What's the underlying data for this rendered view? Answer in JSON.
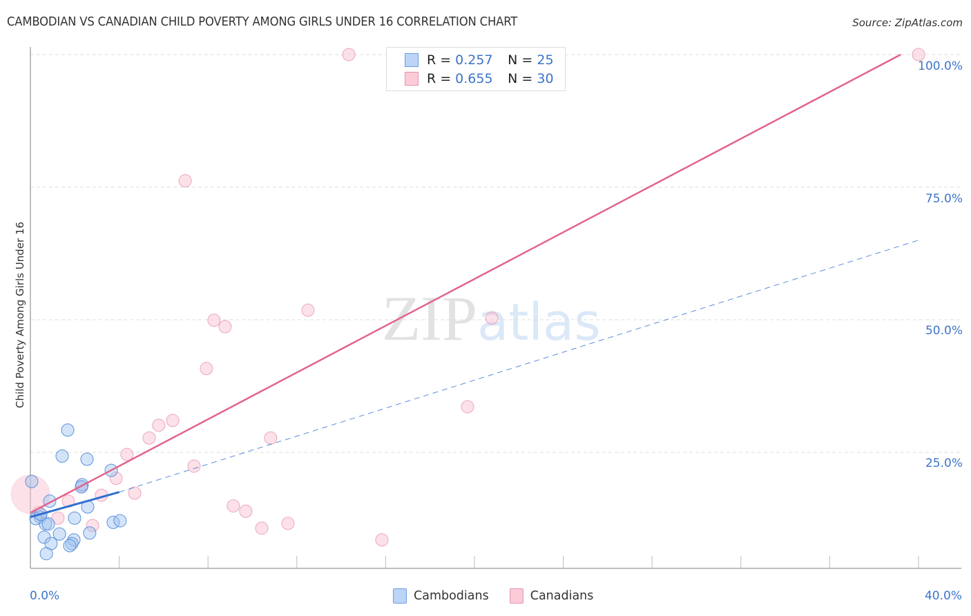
{
  "header": {
    "title": "CAMBODIAN VS CANADIAN CHILD POVERTY AMONG GIRLS UNDER 16 CORRELATION CHART",
    "source": "Source: ZipAtlas.com"
  },
  "watermark": {
    "zip": "ZIP",
    "atlas": "atlas"
  },
  "axes": {
    "ylabel": "Child Poverty Among Girls Under 16",
    "y_ticks": [
      "100.0%",
      "75.0%",
      "50.0%",
      "25.0%"
    ],
    "x_ticks": [
      "0.0%",
      "40.0%"
    ]
  },
  "legend": {
    "rows": [
      {
        "r_label": "R =",
        "r_value": "0.257",
        "n_label": "N =",
        "n_value": "25",
        "color": "#a9c8f0"
      },
      {
        "r_label": "R =",
        "r_value": "0.655",
        "n_label": "N =",
        "n_value": "30",
        "color": "#f7b8cb"
      }
    ],
    "series": [
      {
        "name": "Cambodians",
        "fill": "#bcd4f5",
        "stroke": "#6c9de0"
      },
      {
        "name": "Canadians",
        "fill": "#fbcbd8",
        "stroke": "#e593ae"
      }
    ]
  },
  "colors": {
    "blue_point_fill": "rgba(160,196,240,0.45)",
    "blue_point_stroke": "#5b91db",
    "pink_point_fill": "rgba(248,188,206,0.45)",
    "pink_point_stroke": "#e693ae",
    "blue_line": "#2f6fd0",
    "pink_line": "#e2628b",
    "grid": "#dddddd",
    "tick_label": "#3b74c9"
  },
  "chart_data": {
    "type": "scatter",
    "title": "CAMBODIAN VS CANADIAN CHILD POVERTY AMONG GIRLS UNDER 16 CORRELATION CHART",
    "xlabel": "",
    "ylabel": "Child Poverty Among Girls Under 16",
    "xlim": [
      0,
      40
    ],
    "ylim": [
      3,
      100
    ],
    "x_tick_labels": [
      "0.0%",
      "40.0%"
    ],
    "y_tick_labels": [
      "25.0%",
      "50.0%",
      "75.0%",
      "100.0%"
    ],
    "grid": "horizontal dashed",
    "legend_position": "top-center and bottom",
    "series": [
      {
        "name": "Cambodians",
        "R": 0.257,
        "N": 25,
        "points": [
          {
            "x": 0.06,
            "y": 19.5
          },
          {
            "x": 1.68,
            "y": 29.2
          },
          {
            "x": 1.43,
            "y": 24.3
          },
          {
            "x": 2.55,
            "y": 23.7
          },
          {
            "x": 2.33,
            "y": 18.9
          },
          {
            "x": 3.64,
            "y": 21.6
          },
          {
            "x": 2.3,
            "y": 18.5
          },
          {
            "x": 0.87,
            "y": 15.8
          },
          {
            "x": 2.58,
            "y": 14.7
          },
          {
            "x": 1.99,
            "y": 12.6
          },
          {
            "x": 3.73,
            "y": 11.8
          },
          {
            "x": 4.04,
            "y": 12.1
          },
          {
            "x": 2.67,
            "y": 9.8
          },
          {
            "x": 1.31,
            "y": 9.6
          },
          {
            "x": 0.44,
            "y": 12.8
          },
          {
            "x": 0.25,
            "y": 12.5
          },
          {
            "x": 0.68,
            "y": 11.5
          },
          {
            "x": 0.81,
            "y": 11.5
          },
          {
            "x": 0.62,
            "y": 9.0
          },
          {
            "x": 0.93,
            "y": 7.8
          },
          {
            "x": 1.96,
            "y": 8.5
          },
          {
            "x": 1.87,
            "y": 7.8
          },
          {
            "x": 1.77,
            "y": 7.4
          },
          {
            "x": 0.72,
            "y": 5.9
          },
          {
            "x": 0.47,
            "y": 13.3
          }
        ],
        "trend_solid": {
          "x": [
            0,
            4.0
          ],
          "y": [
            12.8,
            17.5
          ]
        },
        "trend_dashed_extent": {
          "x": [
            4.0,
            40.0
          ],
          "y": [
            17.5,
            65.0
          ]
        }
      },
      {
        "name": "Canadians",
        "R": 0.655,
        "N": 30,
        "points": [
          {
            "x": 14.34,
            "y": 100.0
          },
          {
            "x": 21.93,
            "y": 100.0
          },
          {
            "x": 40.0,
            "y": 100.0
          },
          {
            "x": 6.97,
            "y": 76.2
          },
          {
            "x": 12.5,
            "y": 51.8
          },
          {
            "x": 8.27,
            "y": 49.9
          },
          {
            "x": 8.77,
            "y": 48.7
          },
          {
            "x": 20.78,
            "y": 50.3
          },
          {
            "x": 7.93,
            "y": 40.8
          },
          {
            "x": 19.69,
            "y": 33.6
          },
          {
            "x": 6.41,
            "y": 31.0
          },
          {
            "x": 5.78,
            "y": 30.1
          },
          {
            "x": 5.35,
            "y": 27.7
          },
          {
            "x": 10.82,
            "y": 27.7
          },
          {
            "x": 4.35,
            "y": 24.6
          },
          {
            "x": 3.86,
            "y": 20.1
          },
          {
            "x": 7.37,
            "y": 22.4
          },
          {
            "x": 2.3,
            "y": 18.5
          },
          {
            "x": 3.2,
            "y": 16.9
          },
          {
            "x": 4.7,
            "y": 17.3
          },
          {
            "x": 9.14,
            "y": 14.9
          },
          {
            "x": 9.7,
            "y": 13.9
          },
          {
            "x": 1.24,
            "y": 12.6
          },
          {
            "x": 0.37,
            "y": 13.6
          },
          {
            "x": 0.0,
            "y": 17.1
          },
          {
            "x": 2.8,
            "y": 11.2
          },
          {
            "x": 10.42,
            "y": 10.7
          },
          {
            "x": 11.6,
            "y": 11.6
          },
          {
            "x": 15.83,
            "y": 8.5
          },
          {
            "x": 1.71,
            "y": 15.8
          }
        ],
        "trend_solid": {
          "x": [
            0,
            39.2
          ],
          "y": [
            13.6,
            100.0
          ]
        }
      }
    ]
  }
}
